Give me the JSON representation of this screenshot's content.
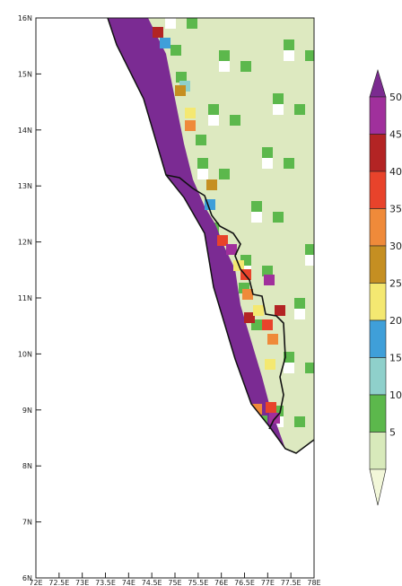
{
  "map": {
    "lat_labels": [
      "16N",
      "15N",
      "14N",
      "13N",
      "12N",
      "11N",
      "10N",
      "9N",
      "8N",
      "7N",
      "6N"
    ],
    "lon_labels": [
      "72E",
      "72.5E",
      "73E",
      "73.5E",
      "74E",
      "74.5E",
      "75E",
      "75.5E",
      "76E",
      "76.5E",
      "77E",
      "77.5E",
      "78E"
    ],
    "extent": {
      "lon_min": 72,
      "lon_max": 78,
      "lat_min": 6,
      "lat_max": 16
    }
  },
  "legend": {
    "labels": [
      "5",
      "10",
      "15",
      "20",
      "25",
      "30",
      "35",
      "40",
      "45",
      "50"
    ],
    "colors": [
      "#f2f7d9",
      "#d8eabb",
      "#5cb84c",
      "#8fd0cb",
      "#3f9fd9",
      "#f4e871",
      "#c58f22",
      "#ef8a3a",
      "#e8432b",
      "#b32424",
      "#a0309c",
      "#7b2b90"
    ]
  },
  "colors": {
    "sea": "#ffffff",
    "land_default": "#dde9c0",
    "coast": "#7b2b93",
    "coast_mid": "#a03aa5",
    "green": "#5cb84c",
    "white": "#ffffff",
    "border": "#111111"
  }
}
